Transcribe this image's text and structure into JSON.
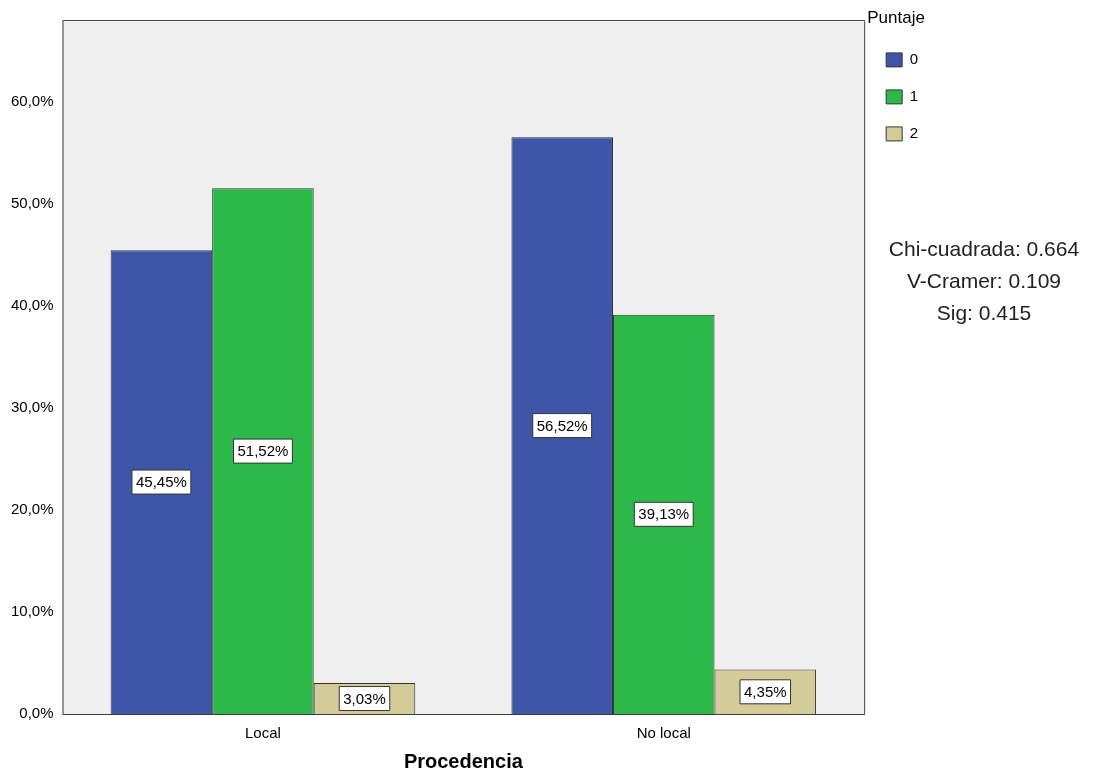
{
  "chart_data": {
    "type": "bar",
    "xlabel": "Procedencia",
    "legend_title": "Puntaje",
    "legend": "top right",
    "grid": false,
    "categories": [
      "Local",
      "No local"
    ],
    "series": [
      {
        "name": "0",
        "color": "#3f56a8",
        "values": [
          45.45,
          56.52
        ],
        "value_labels": [
          "45,45%",
          "56,52%"
        ]
      },
      {
        "name": "1",
        "color": "#2db84a",
        "values": [
          51.52,
          39.13
        ],
        "value_labels": [
          "51,52%",
          "39,13%"
        ]
      },
      {
        "name": "2",
        "color": "#d4cc98",
        "values": [
          3.03,
          4.35
        ],
        "value_labels": [
          "3,03%",
          "4,35%"
        ]
      }
    ],
    "ylim": [
      0,
      68
    ],
    "yticks": [
      {
        "value": 0,
        "label": "0,0%"
      },
      {
        "value": 10,
        "label": "10,0%"
      },
      {
        "value": 20,
        "label": "20,0%"
      },
      {
        "value": 30,
        "label": "30,0%"
      },
      {
        "value": 40,
        "label": "40,0%"
      },
      {
        "value": 50,
        "label": "50,0%"
      },
      {
        "value": 60,
        "label": "60,0%"
      }
    ],
    "annotations": [
      "Chi-cuadrada: 0.664",
      "V-Cramer: 0.109",
      "Sig: 0.415"
    ]
  }
}
